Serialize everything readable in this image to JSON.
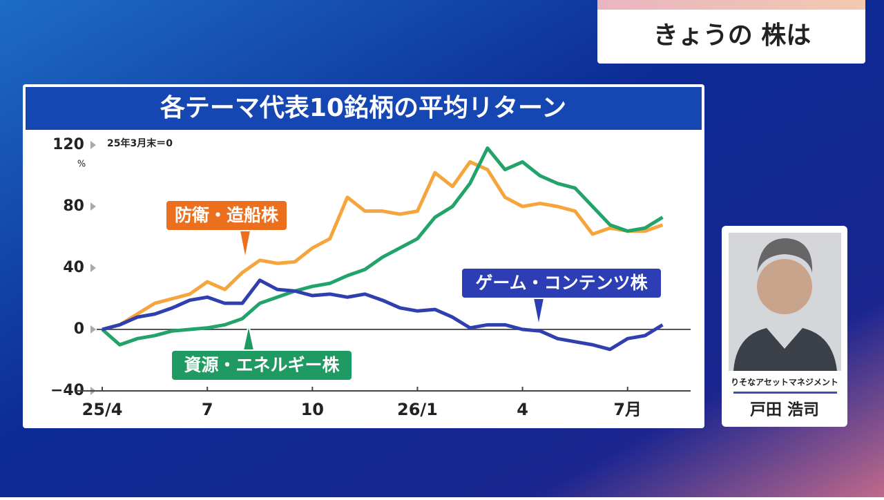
{
  "header": {
    "title": "きょうの 株は"
  },
  "speaker": {
    "company": "りそなアセットマネジメント",
    "name": "戸田 浩司"
  },
  "chart_data": {
    "type": "line",
    "title": "各テーマ代表10銘柄の平均リターン",
    "note": "25年3月末＝0",
    "y_unit": "%",
    "x": [
      0,
      0.5,
      1,
      1.5,
      2,
      2.5,
      3,
      3.5,
      4,
      4.5,
      5,
      5.5,
      6,
      6.5,
      7,
      7.5,
      8,
      8.5,
      9,
      9.5,
      10,
      10.5,
      11,
      11.5,
      12,
      12.5,
      13,
      13.5,
      14,
      14.5,
      15,
      15.5,
      16
    ],
    "xlim": [
      -0.75,
      16.8
    ],
    "xticks": [
      {
        "value": 0,
        "label": "25/4"
      },
      {
        "value": 3,
        "label": "7"
      },
      {
        "value": 6,
        "label": "10"
      },
      {
        "value": 9,
        "label": "26/1"
      },
      {
        "value": 12,
        "label": "4"
      },
      {
        "value": 15,
        "label": "7月"
      }
    ],
    "ylim": [
      -40,
      120
    ],
    "yticks": [
      {
        "value": -40,
        "label": "−40"
      },
      0,
      40,
      80,
      120
    ],
    "zero_line": true,
    "series": [
      {
        "name": "防衛・造船株",
        "color": "#f5a53c",
        "label_color": "#ec6f1e",
        "values": [
          0,
          3,
          10,
          17,
          20,
          23,
          31,
          26,
          37,
          45,
          43,
          44,
          53,
          59,
          86,
          77,
          77,
          75,
          77,
          102,
          93,
          109,
          104,
          86,
          80,
          82,
          80,
          77,
          62,
          66,
          64,
          64,
          68
        ]
      },
      {
        "name": "資源・エネルギー株",
        "color": "#22a36a",
        "label_color": "#1f9a63",
        "values": [
          0,
          -10,
          -6,
          -4,
          -1,
          0,
          1,
          3,
          7,
          17,
          21,
          25,
          28,
          30,
          35,
          39,
          47,
          53,
          59,
          73,
          80,
          95,
          118,
          104,
          109,
          100,
          95,
          92,
          80,
          68,
          64,
          66,
          73
        ]
      },
      {
        "name": "ゲーム・コンテンツ株",
        "color": "#2f3fb0",
        "label_color": "#2d3db3",
        "values": [
          0,
          3,
          8,
          10,
          14,
          19,
          21,
          17,
          17,
          32,
          26,
          25,
          22,
          23,
          21,
          23,
          19,
          14,
          12,
          13,
          8,
          1,
          3,
          3,
          0,
          -1,
          -6,
          -8,
          -10,
          -13,
          -6,
          -4,
          3
        ]
      }
    ]
  }
}
